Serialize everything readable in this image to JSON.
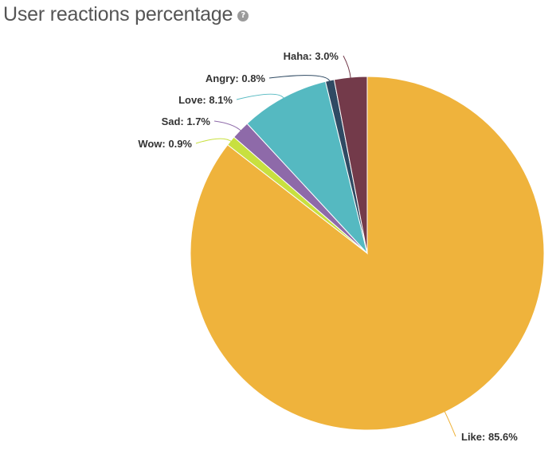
{
  "header": {
    "title": "User reactions percentage",
    "help_icon": "help-circle-icon"
  },
  "chart_data": {
    "type": "pie",
    "title": "User reactions percentage",
    "slices": [
      {
        "label": "Like",
        "value": 85.6,
        "display": "Like: 85.6%",
        "color": "#efb33c"
      },
      {
        "label": "Wow",
        "value": 0.9,
        "display": "Wow: 0.9%",
        "color": "#c8e03f"
      },
      {
        "label": "Sad",
        "value": 1.7,
        "display": "Sad: 1.7%",
        "color": "#8e6aa9"
      },
      {
        "label": "Love",
        "value": 8.1,
        "display": "Love: 8.1%",
        "color": "#55b9c1"
      },
      {
        "label": "Angry",
        "value": 0.8,
        "display": "Angry: 0.8%",
        "color": "#2f4a63"
      },
      {
        "label": "Haha",
        "value": 3.0,
        "display": "Haha: 3.0%",
        "color": "#733a4a"
      }
    ]
  }
}
